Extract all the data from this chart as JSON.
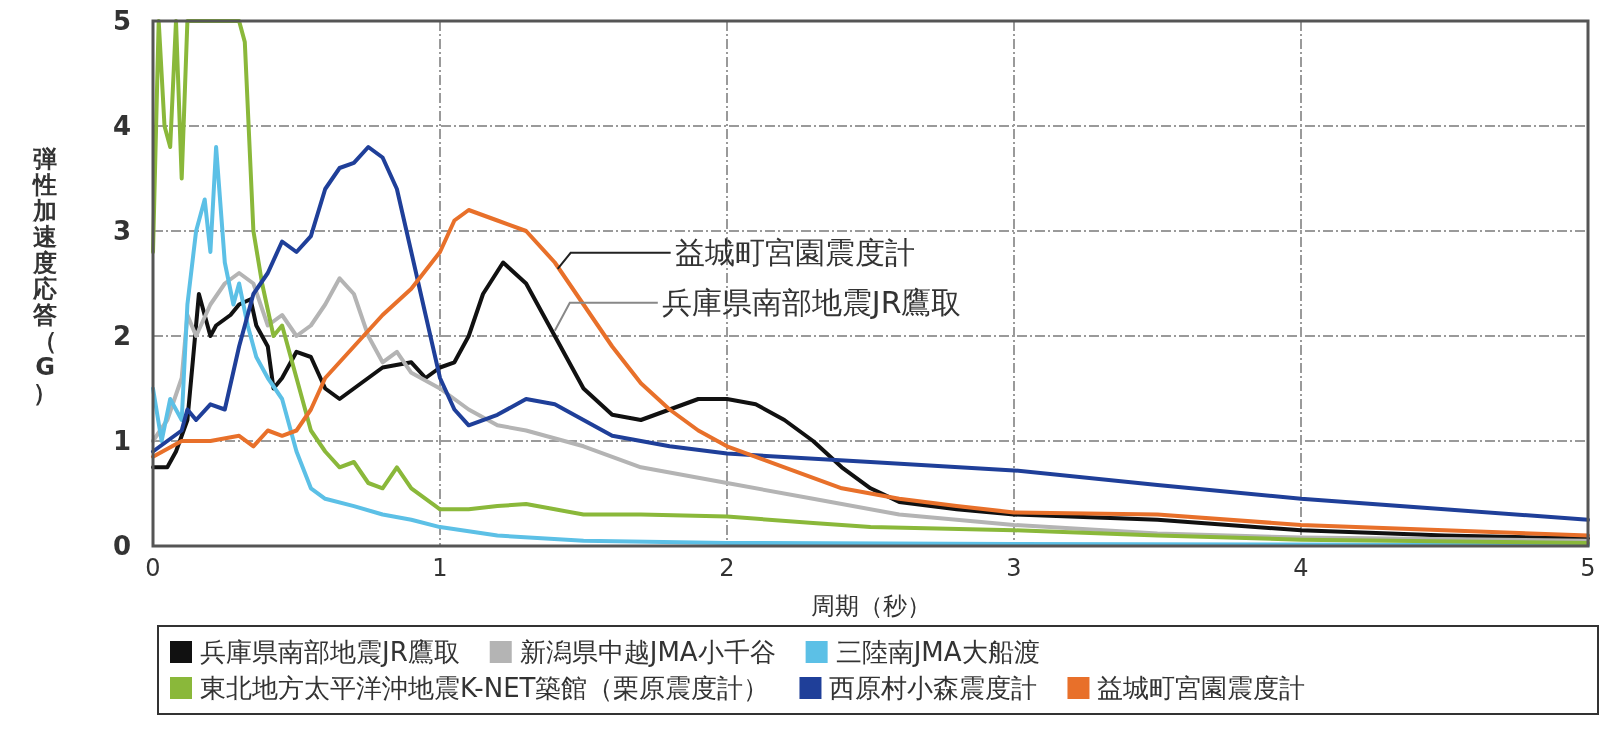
{
  "chart_data": {
    "type": "line",
    "xlabel": "周期（秒）",
    "ylabel": "弾性加速度応答（G）",
    "xlim": [
      0,
      5
    ],
    "ylim": [
      0,
      5
    ],
    "xticks": [
      0,
      1,
      2,
      3,
      4,
      5
    ],
    "yticks": [
      0,
      1,
      2,
      3,
      4,
      5
    ],
    "grid": true,
    "legend": "bottom",
    "line_style": "solid",
    "marker": "none",
    "annotations": [
      {
        "text": "益城町宮園震度計",
        "x": 1.41,
        "y": 2.64
      },
      {
        "text": "兵庫県南部地震JR鷹取",
        "x": 1.4,
        "y": 2.05
      }
    ],
    "series": [
      {
        "name": "兵庫県南部地震JR鷹取",
        "color": "#111111",
        "x": [
          0,
          0.05,
          0.08,
          0.12,
          0.14,
          0.16,
          0.2,
          0.22,
          0.27,
          0.3,
          0.34,
          0.36,
          0.4,
          0.42,
          0.45,
          0.5,
          0.55,
          0.6,
          0.65,
          0.7,
          0.8,
          0.9,
          0.95,
          1.0,
          1.05,
          1.1,
          1.15,
          1.22,
          1.3,
          1.4,
          1.5,
          1.6,
          1.7,
          1.8,
          1.9,
          2.0,
          2.1,
          2.2,
          2.3,
          2.4,
          2.5,
          2.6,
          2.8,
          3.0,
          3.5,
          4.0,
          4.5,
          5.0
        ],
        "values": [
          0.75,
          0.75,
          0.9,
          1.2,
          1.8,
          2.4,
          2.0,
          2.1,
          2.2,
          2.3,
          2.35,
          2.1,
          1.9,
          1.5,
          1.6,
          1.85,
          1.8,
          1.5,
          1.4,
          1.5,
          1.7,
          1.75,
          1.6,
          1.7,
          1.75,
          2.0,
          2.4,
          2.7,
          2.5,
          2.0,
          1.5,
          1.25,
          1.2,
          1.3,
          1.4,
          1.4,
          1.35,
          1.2,
          1.0,
          0.75,
          0.55,
          0.42,
          0.35,
          0.3,
          0.25,
          0.15,
          0.1,
          0.07
        ]
      },
      {
        "name": "新潟県中越JMA小千谷",
        "color": "#b4b4b4",
        "x": [
          0,
          0.05,
          0.1,
          0.12,
          0.15,
          0.2,
          0.25,
          0.3,
          0.35,
          0.4,
          0.45,
          0.5,
          0.55,
          0.6,
          0.65,
          0.7,
          0.75,
          0.8,
          0.85,
          0.9,
          1.0,
          1.1,
          1.2,
          1.3,
          1.5,
          1.7,
          2.0,
          2.3,
          2.6,
          3.0,
          3.5,
          4.0,
          5.0
        ],
        "values": [
          1.0,
          1.2,
          1.6,
          2.2,
          2.0,
          2.3,
          2.5,
          2.6,
          2.5,
          2.1,
          2.2,
          2.0,
          2.1,
          2.3,
          2.55,
          2.4,
          2.0,
          1.75,
          1.85,
          1.65,
          1.5,
          1.3,
          1.15,
          1.1,
          0.95,
          0.75,
          0.6,
          0.45,
          0.3,
          0.2,
          0.12,
          0.08,
          0.05
        ]
      },
      {
        "name": "三陸南JMA大船渡",
        "color": "#5cc0e6",
        "x": [
          0,
          0.03,
          0.06,
          0.1,
          0.12,
          0.15,
          0.18,
          0.2,
          0.22,
          0.25,
          0.28,
          0.3,
          0.33,
          0.36,
          0.4,
          0.45,
          0.5,
          0.55,
          0.6,
          0.7,
          0.8,
          0.9,
          1.0,
          1.2,
          1.5,
          2.0,
          3.0,
          5.0
        ],
        "values": [
          1.5,
          1.0,
          1.4,
          1.2,
          2.3,
          3.0,
          3.3,
          2.8,
          3.8,
          2.7,
          2.3,
          2.5,
          2.1,
          1.8,
          1.6,
          1.4,
          0.9,
          0.55,
          0.45,
          0.38,
          0.3,
          0.25,
          0.18,
          0.1,
          0.05,
          0.03,
          0.02,
          0.01
        ]
      },
      {
        "name": "東北地方太平洋沖地震K-NET築館（栗原震度計）",
        "color": "#8ab83a",
        "x": [
          0,
          0.02,
          0.04,
          0.06,
          0.08,
          0.1,
          0.12,
          0.3,
          0.32,
          0.35,
          0.38,
          0.42,
          0.45,
          0.5,
          0.55,
          0.6,
          0.65,
          0.7,
          0.75,
          0.8,
          0.85,
          0.9,
          1.0,
          1.1,
          1.2,
          1.3,
          1.4,
          1.5,
          1.7,
          2.0,
          2.3,
          2.5,
          3.0,
          3.5,
          4.0,
          5.0
        ],
        "values": [
          2.8,
          5.0,
          4.0,
          3.8,
          5.0,
          3.5,
          5.0,
          5.0,
          4.8,
          3.0,
          2.5,
          2.0,
          2.1,
          1.6,
          1.1,
          0.9,
          0.75,
          0.8,
          0.6,
          0.55,
          0.75,
          0.55,
          0.35,
          0.35,
          0.38,
          0.4,
          0.35,
          0.3,
          0.3,
          0.28,
          0.22,
          0.18,
          0.15,
          0.1,
          0.06,
          0.03
        ]
      },
      {
        "name": "西原村小森震度計",
        "color": "#1f3f99",
        "x": [
          0,
          0.05,
          0.1,
          0.12,
          0.15,
          0.2,
          0.25,
          0.3,
          0.35,
          0.4,
          0.45,
          0.5,
          0.55,
          0.6,
          0.65,
          0.7,
          0.75,
          0.8,
          0.85,
          0.9,
          0.95,
          1.0,
          1.05,
          1.1,
          1.2,
          1.3,
          1.4,
          1.5,
          1.6,
          1.8,
          2.0,
          2.5,
          3.0,
          3.5,
          4.0,
          4.5,
          5.0
        ],
        "values": [
          0.9,
          1.0,
          1.1,
          1.3,
          1.2,
          1.35,
          1.3,
          1.9,
          2.4,
          2.6,
          2.9,
          2.8,
          2.95,
          3.4,
          3.6,
          3.65,
          3.8,
          3.7,
          3.4,
          2.8,
          2.2,
          1.6,
          1.3,
          1.15,
          1.25,
          1.4,
          1.35,
          1.2,
          1.05,
          0.95,
          0.88,
          0.8,
          0.72,
          0.58,
          0.45,
          0.35,
          0.25
        ]
      },
      {
        "name": "益城町宮園震度計",
        "color": "#e8702a",
        "x": [
          0,
          0.1,
          0.2,
          0.3,
          0.35,
          0.4,
          0.45,
          0.5,
          0.55,
          0.6,
          0.7,
          0.8,
          0.9,
          1.0,
          1.05,
          1.1,
          1.2,
          1.3,
          1.4,
          1.5,
          1.6,
          1.7,
          1.8,
          1.9,
          2.0,
          2.2,
          2.4,
          2.6,
          2.8,
          3.0,
          3.5,
          4.0,
          4.5,
          5.0
        ],
        "values": [
          0.85,
          1.0,
          1.0,
          1.05,
          0.95,
          1.1,
          1.05,
          1.1,
          1.3,
          1.6,
          1.9,
          2.2,
          2.45,
          2.8,
          3.1,
          3.2,
          3.1,
          3.0,
          2.7,
          2.3,
          1.9,
          1.55,
          1.3,
          1.1,
          0.95,
          0.75,
          0.55,
          0.45,
          0.38,
          0.32,
          0.3,
          0.2,
          0.15,
          0.1
        ]
      }
    ]
  }
}
